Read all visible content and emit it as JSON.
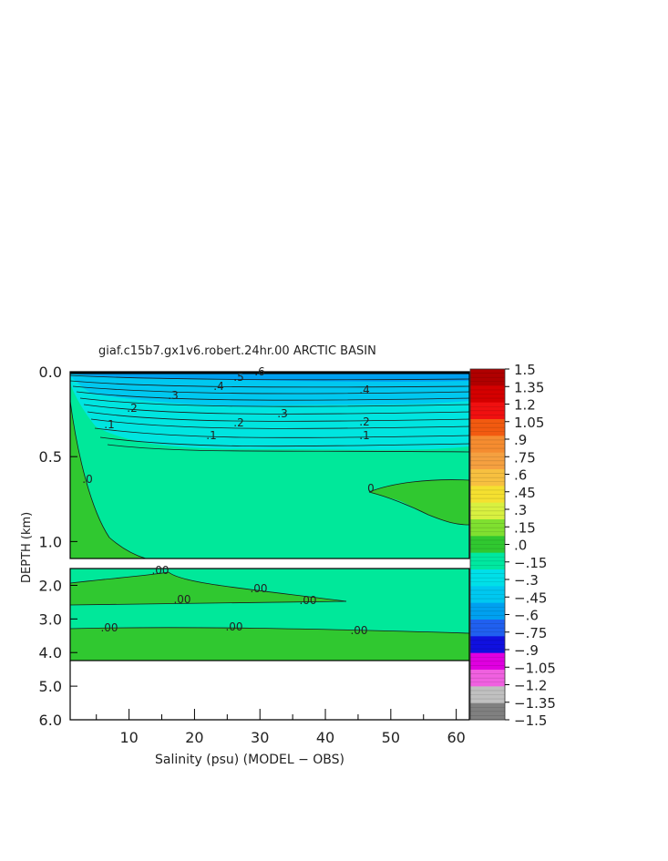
{
  "chart_data": {
    "type": "heatmap",
    "title": "giaf.c15b7.gx1v6.robert.24hr.00 ARCTIC BASIN",
    "xlabel": "Salinity (psu) (MODEL − OBS)",
    "ylabel": "DEPTH (km)",
    "x_ticks": [
      "10",
      "20",
      "30",
      "40",
      "50",
      "60"
    ],
    "xlim": [
      1,
      62
    ],
    "upper_panel": {
      "ylim": [
        0.0,
        1.1
      ],
      "y_ticks": [
        "0.0",
        "0.5",
        "1.0"
      ]
    },
    "lower_panel": {
      "ylim": [
        1.5,
        6.0
      ],
      "y_ticks": [
        "2.0",
        "3.0",
        "4.0",
        "5.0",
        "6.0"
      ]
    },
    "colorbar": {
      "range": [
        -1.5,
        1.5
      ],
      "labels": [
        "1.5",
        "1.35",
        "1.2",
        "1.05",
        ".9",
        ".75",
        ".6",
        ".45",
        ".3",
        ".15",
        ".0",
        "−.15",
        "−.3",
        "−.45",
        "−.6",
        "−.75",
        "−.9",
        "−1.05",
        "−1.2",
        "−1.35",
        "−1.5"
      ],
      "colors": [
        "#b00000",
        "#d40000",
        "#f01010",
        "#f25a10",
        "#f58c30",
        "#f5a040",
        "#f7c040",
        "#f5e030",
        "#d8f040",
        "#80e030",
        "#30c830",
        "#00e8a0",
        "#00e0e8",
        "#00c8f0",
        "#00a0f0",
        "#2060f0",
        "#1010e0",
        "#e000e0",
        "#f060e0",
        "#c0c0c0",
        "#808080"
      ]
    },
    "contour_labels": [
      {
        "text": ".1"
      },
      {
        "text": ".2"
      },
      {
        "text": ".3"
      },
      {
        "text": ".4"
      },
      {
        "text": ".5"
      },
      {
        "text": ".6"
      },
      {
        "text": ".2"
      },
      {
        "text": ".1"
      },
      {
        "text": ".2"
      },
      {
        "text": ".1"
      },
      {
        "text": ".3"
      },
      {
        "text": ".4"
      },
      {
        "text": ".0"
      },
      {
        "text": "0"
      },
      {
        "text": ".00"
      },
      {
        "text": ".00"
      },
      {
        "text": ".00"
      },
      {
        "text": ".00"
      },
      {
        "text": ".00"
      },
      {
        "text": ".00"
      },
      {
        "text": ".00"
      }
    ]
  }
}
